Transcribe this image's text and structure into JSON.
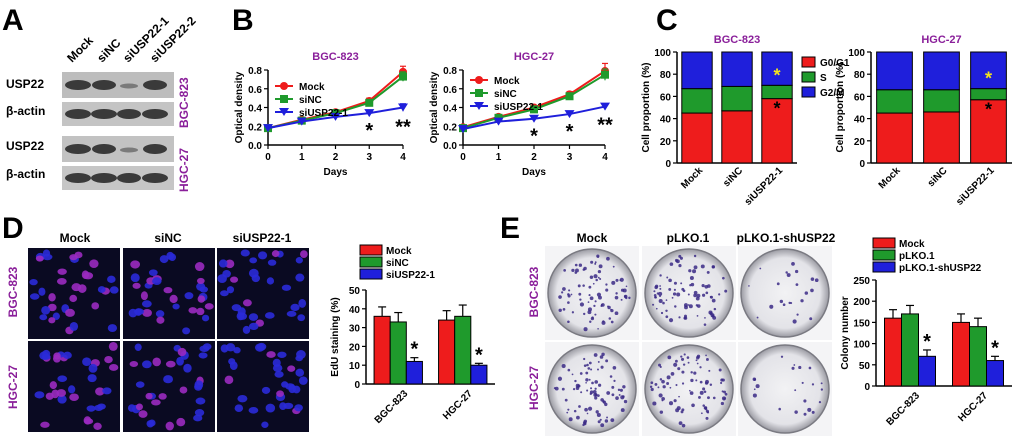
{
  "figure": {
    "panels": {
      "A": {
        "label": "A",
        "lanes": [
          "Mock",
          "siNC",
          "siUSP22-1",
          "siUSP22-2"
        ],
        "blots": [
          {
            "row_labels": [
              "USP22",
              "β-actin"
            ],
            "cell_line": "BGC-823"
          },
          {
            "row_labels": [
              "USP22",
              "β-actin"
            ],
            "cell_line": "HGC-27"
          }
        ]
      },
      "B": {
        "label": "B"
      },
      "C": {
        "label": "C"
      },
      "D": {
        "label": "D",
        "image_columns": [
          "Mock",
          "siNC",
          "siUSP22-1"
        ],
        "image_rows": [
          "BGC-823",
          "HGC-27"
        ]
      },
      "E": {
        "label": "E",
        "image_columns": [
          "Mock",
          "pLKO.1",
          "pLKO.1-shUSP22"
        ],
        "image_rows": [
          "BGC-823",
          "HGC-27"
        ]
      }
    },
    "colors": {
      "red": "#ee1c1c",
      "green": "#1f9a2c",
      "blue": "#1f1fdb",
      "purple": "#8a1f9a",
      "star_yellow": "#f4e41c"
    }
  },
  "chart_data": [
    {
      "id": "B1",
      "type": "line",
      "title": "BGC-823",
      "xlabel": "Days",
      "ylabel": "Optical density",
      "x": [
        0,
        1,
        2,
        3,
        4
      ],
      "xlim": [
        0,
        4
      ],
      "ylim": [
        0.0,
        0.8
      ],
      "xticks": [
        "0",
        "1",
        "2",
        "3",
        "4"
      ],
      "yticks": [
        "0.0",
        "0.2",
        "0.4",
        "0.6",
        "0.8"
      ],
      "series": [
        {
          "name": "Mock",
          "values": [
            0.18,
            0.27,
            0.35,
            0.47,
            0.78
          ],
          "err": [
            0.01,
            0.01,
            0.02,
            0.03,
            0.06
          ]
        },
        {
          "name": "siNC",
          "values": [
            0.18,
            0.26,
            0.34,
            0.45,
            0.73
          ],
          "err": [
            0.01,
            0.01,
            0.02,
            0.03,
            0.05
          ]
        },
        {
          "name": "siUSP22-1",
          "values": [
            0.18,
            0.25,
            0.3,
            0.34,
            0.4
          ],
          "err": [
            0.01,
            0.01,
            0.02,
            0.02,
            0.04
          ]
        }
      ],
      "annotations": [
        {
          "x": 3,
          "text": "*"
        },
        {
          "x": 4,
          "text": "**"
        }
      ]
    },
    {
      "id": "B2",
      "type": "line",
      "title": "HGC-27",
      "xlabel": "Days",
      "ylabel": "Optical density",
      "x": [
        0,
        1,
        2,
        3,
        4
      ],
      "xlim": [
        0,
        4
      ],
      "ylim": [
        0.0,
        0.8
      ],
      "xticks": [
        "0",
        "1",
        "2",
        "3",
        "4"
      ],
      "yticks": [
        "0.0",
        "0.2",
        "0.4",
        "0.6",
        "0.8"
      ],
      "series": [
        {
          "name": "Mock",
          "values": [
            0.19,
            0.3,
            0.4,
            0.54,
            0.79
          ],
          "err": [
            0.01,
            0.01,
            0.02,
            0.03,
            0.08
          ]
        },
        {
          "name": "siNC",
          "values": [
            0.18,
            0.29,
            0.38,
            0.52,
            0.75
          ],
          "err": [
            0.01,
            0.01,
            0.02,
            0.03,
            0.06
          ]
        },
        {
          "name": "siUSP22-1",
          "values": [
            0.17,
            0.25,
            0.28,
            0.33,
            0.41
          ],
          "err": [
            0.01,
            0.01,
            0.02,
            0.02,
            0.03
          ]
        }
      ],
      "annotations": [
        {
          "x": 2,
          "text": "*"
        },
        {
          "x": 3,
          "text": "*"
        },
        {
          "x": 4,
          "text": "**"
        }
      ]
    },
    {
      "id": "C1",
      "type": "bar",
      "stacked": true,
      "title": "BGC-823",
      "ylabel": "Cell proportion (%)",
      "ylim": [
        0,
        100
      ],
      "yticks": [
        "0",
        "20",
        "40",
        "60",
        "80",
        "100"
      ],
      "categories": [
        "Mock",
        "siNC",
        "siUSP22-1"
      ],
      "series": [
        {
          "name": "G0/G1",
          "values": [
            45,
            47,
            58
          ]
        },
        {
          "name": "S",
          "values": [
            22,
            22,
            12
          ]
        },
        {
          "name": "G2/M",
          "values": [
            33,
            31,
            30
          ]
        }
      ],
      "annotations": [
        {
          "category": "siUSP22-1",
          "series": "G0/G1",
          "text": "*"
        },
        {
          "category": "siUSP22-1",
          "series": "G2/M",
          "text": "*"
        }
      ]
    },
    {
      "id": "C2",
      "type": "bar",
      "stacked": true,
      "title": "HGC-27",
      "ylabel": "Cell proportion (%)",
      "ylim": [
        0,
        100
      ],
      "yticks": [
        "0",
        "20",
        "40",
        "60",
        "80",
        "100"
      ],
      "categories": [
        "Mock",
        "siNC",
        "siUSP22-1"
      ],
      "series": [
        {
          "name": "G0/G1",
          "values": [
            45,
            46,
            57
          ]
        },
        {
          "name": "S",
          "values": [
            21,
            20,
            10
          ]
        },
        {
          "name": "G2/M",
          "values": [
            34,
            34,
            33
          ]
        }
      ],
      "annotations": [
        {
          "category": "siUSP22-1",
          "series": "G0/G1",
          "text": "*"
        },
        {
          "category": "siUSP22-1",
          "series": "G2/M",
          "text": "*"
        }
      ]
    },
    {
      "id": "D",
      "type": "bar",
      "ylabel": "EdU staining (%)",
      "ylim": [
        0,
        50
      ],
      "yticks": [
        "0",
        "10",
        "20",
        "30",
        "40",
        "50"
      ],
      "categories": [
        "BGC-823",
        "HGC-27"
      ],
      "series": [
        {
          "name": "Mock",
          "values": [
            36,
            34
          ],
          "err": [
            5,
            5
          ]
        },
        {
          "name": "siNC",
          "values": [
            33,
            36
          ],
          "err": [
            5,
            6
          ]
        },
        {
          "name": "siUSP22-1",
          "values": [
            12,
            10
          ],
          "err": [
            2,
            1
          ]
        }
      ],
      "annotations": [
        {
          "category": "BGC-823",
          "series": "siUSP22-1",
          "text": "*"
        },
        {
          "category": "HGC-27",
          "series": "siUSP22-1",
          "text": "*"
        }
      ]
    },
    {
      "id": "E",
      "type": "bar",
      "ylabel": "Colony number",
      "ylim": [
        0,
        250
      ],
      "yticks": [
        "0",
        "50",
        "100",
        "150",
        "200",
        "250"
      ],
      "categories": [
        "BGC-823",
        "HGC-27"
      ],
      "series": [
        {
          "name": "Mock",
          "values": [
            160,
            150
          ],
          "err": [
            20,
            20
          ]
        },
        {
          "name": "pLKO.1",
          "values": [
            170,
            140
          ],
          "err": [
            20,
            20
          ]
        },
        {
          "name": "pLKO.1-shUSP22",
          "values": [
            70,
            60
          ],
          "err": [
            15,
            10
          ]
        }
      ],
      "annotations": [
        {
          "category": "BGC-823",
          "series": "pLKO.1-shUSP22",
          "text": "*"
        },
        {
          "category": "HGC-27",
          "series": "pLKO.1-shUSP22",
          "text": "*"
        }
      ]
    }
  ]
}
